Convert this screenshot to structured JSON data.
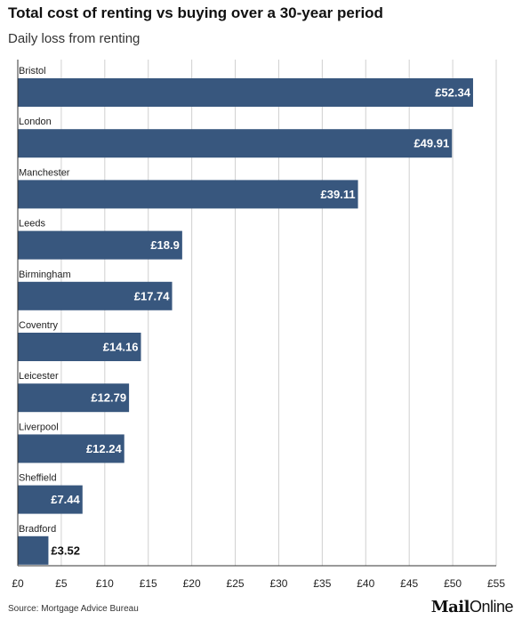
{
  "header": {
    "title": "Total cost of renting vs buying over a 30-year period",
    "subtitle": "Daily loss from renting"
  },
  "footer": {
    "source": "Source: Mortgage Advice Bureau",
    "logo_bold": "Mail",
    "logo_regular": "Online"
  },
  "colors": {
    "bar": "#38577e",
    "grid": "#d0d0d0",
    "axis": "#333333",
    "label_inside": "#ffffff",
    "label_outside": "#111111"
  },
  "chart_data": {
    "type": "bar",
    "orientation": "horizontal",
    "title": "Total cost of renting vs buying over a 30-year period",
    "subtitle": "Daily loss from renting",
    "categories": [
      "Bristol",
      "London",
      "Manchester",
      "Leeds",
      "Birmingham",
      "Coventry",
      "Leicester",
      "Liverpool",
      "Sheffield",
      "Bradford"
    ],
    "values": [
      52.34,
      49.91,
      39.11,
      18.9,
      17.74,
      14.16,
      12.79,
      12.24,
      7.44,
      3.52
    ],
    "value_labels": [
      "£52.34",
      "£49.91",
      "£39.11",
      "£18.9",
      "£17.74",
      "£14.16",
      "£12.79",
      "£12.24",
      "£7.44",
      "£3.52"
    ],
    "xlim": [
      0,
      55
    ],
    "xticks": [
      0,
      5,
      10,
      15,
      20,
      25,
      30,
      35,
      40,
      45,
      50,
      55
    ],
    "xtick_labels": [
      "£0",
      "£5",
      "£10",
      "£15",
      "£20",
      "£25",
      "£30",
      "£35",
      "£40",
      "£45",
      "£50",
      "£55"
    ],
    "grid": "vertical",
    "legend": "none"
  }
}
